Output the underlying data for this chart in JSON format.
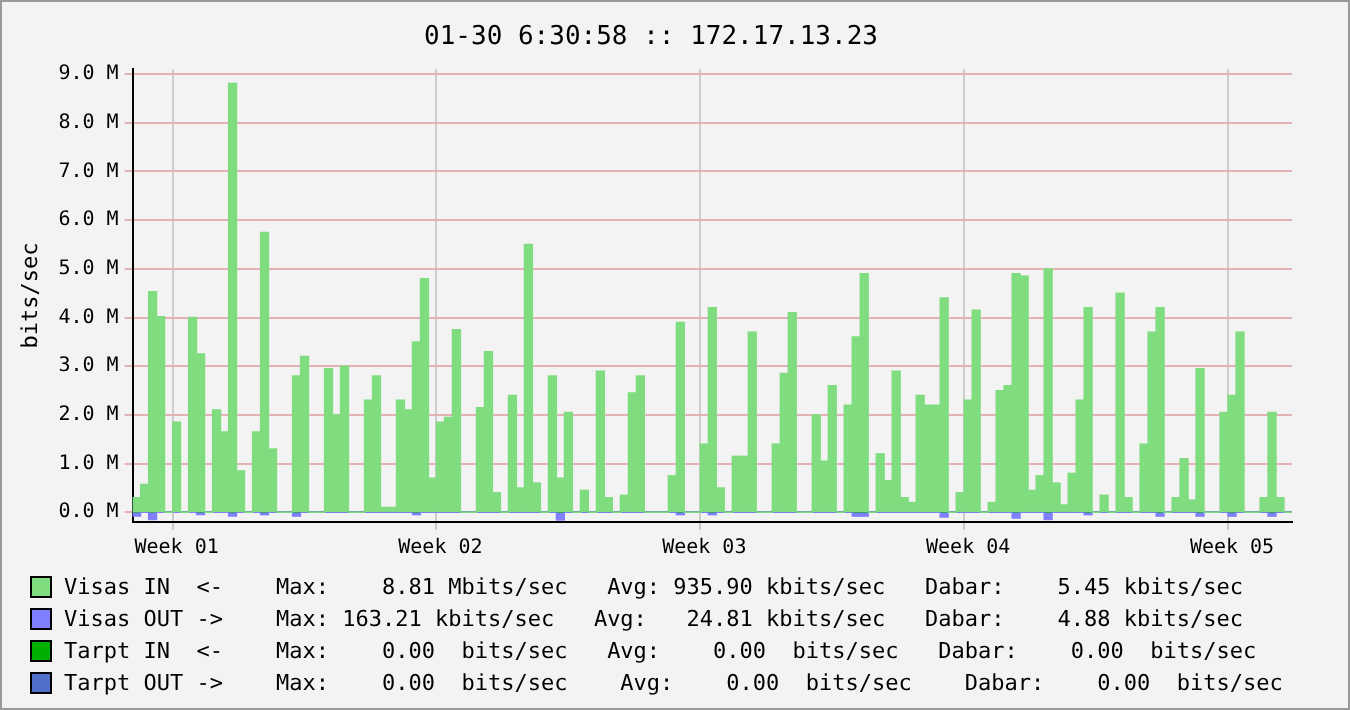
{
  "chart_data": {
    "type": "bar",
    "title": "01-30 6:30:58 :: 172.17.13.23",
    "ylabel": "bits/sec",
    "categories": [
      null,
      null,
      null,
      null,
      null,
      "Week 01",
      null,
      null,
      null,
      null,
      null,
      null,
      null,
      null,
      null,
      null,
      null,
      null,
      null,
      null,
      null,
      null,
      null,
      null,
      null,
      null,
      null,
      null,
      null,
      null,
      null,
      null,
      null,
      null,
      null,
      null,
      null,
      null,
      "Week 02",
      null,
      null,
      null,
      null,
      null,
      null,
      null,
      null,
      null,
      null,
      null,
      null,
      null,
      null,
      null,
      null,
      null,
      null,
      null,
      null,
      null,
      null,
      null,
      null,
      null,
      null,
      null,
      null,
      null,
      null,
      null,
      null,
      "Week 03",
      null,
      null,
      null,
      null,
      null,
      null,
      null,
      null,
      null,
      null,
      null,
      null,
      null,
      null,
      null,
      null,
      null,
      null,
      null,
      null,
      null,
      null,
      null,
      null,
      null,
      null,
      null,
      null,
      null,
      null,
      null,
      null,
      "Week 04",
      null,
      null,
      null,
      null,
      null,
      null,
      null,
      null,
      null,
      null,
      null,
      null,
      null,
      null,
      null,
      null,
      null,
      null,
      null,
      null,
      null,
      null,
      null,
      null,
      null,
      null,
      null,
      null,
      null,
      null,
      null,
      null,
      "Week 05",
      null,
      null,
      null,
      null,
      null,
      null,
      null
    ],
    "series": [
      {
        "name": "Visas IN  <-",
        "color": "#7fdc7f",
        "values": [
          0.3,
          0.57,
          4.53,
          4.02,
          0,
          1.85,
          0,
          4.0,
          3.25,
          0,
          2.1,
          1.65,
          8.81,
          0.85,
          0,
          1.65,
          5.75,
          1.3,
          0,
          0,
          2.8,
          3.2,
          0,
          0,
          2.95,
          2.0,
          3.0,
          0,
          0,
          2.3,
          2.8,
          0.1,
          0.1,
          2.3,
          2.1,
          3.5,
          4.8,
          0.7,
          1.85,
          1.95,
          3.75,
          0,
          0,
          2.15,
          3.3,
          0.4,
          0,
          2.4,
          0.5,
          5.5,
          0.6,
          0,
          2.8,
          0.7,
          2.05,
          0,
          0.45,
          0,
          2.9,
          0.3,
          0,
          0.35,
          2.45,
          2.8,
          0,
          0,
          0,
          0.75,
          3.9,
          0,
          0,
          1.4,
          4.2,
          0.5,
          0,
          1.15,
          1.15,
          3.7,
          0,
          0,
          1.4,
          2.85,
          4.1,
          0,
          0,
          2.0,
          1.05,
          2.6,
          0,
          2.2,
          3.6,
          4.9,
          0,
          1.2,
          0.65,
          2.9,
          0.3,
          0.2,
          2.4,
          2.2,
          2.2,
          4.4,
          0,
          0.4,
          2.3,
          4.15,
          0,
          0.2,
          2.5,
          2.6,
          4.9,
          4.85,
          0.45,
          0.75,
          5.0,
          0.6,
          0.15,
          0.8,
          2.3,
          4.2,
          0,
          0.35,
          0,
          4.5,
          0.3,
          0,
          1.4,
          3.7,
          4.2,
          0,
          0.3,
          1.1,
          0.25,
          2.95,
          0,
          0,
          2.05,
          2.4,
          3.7,
          0,
          0,
          0.3,
          2.05,
          0.3,
          0
        ]
      },
      {
        "name": "Visas OUT ->",
        "color": "#7f7fff",
        "values": [
          -0.08,
          0,
          -0.15,
          0,
          0,
          0,
          0,
          0,
          -0.05,
          0,
          0,
          0,
          -0.08,
          0,
          0,
          0,
          -0.05,
          0,
          0,
          0,
          -0.08,
          0,
          0,
          0,
          0,
          0,
          0,
          0,
          0,
          0,
          0,
          0,
          0,
          0,
          0,
          -0.05,
          0,
          0,
          0,
          0,
          0,
          0,
          0,
          0,
          0,
          0,
          0,
          0,
          0,
          0,
          0,
          0,
          0,
          -0.16,
          0,
          0,
          0,
          0,
          0,
          0,
          0,
          0,
          0,
          0,
          0,
          0,
          0,
          0,
          -0.05,
          0,
          0,
          0,
          -0.05,
          0,
          0,
          0,
          0,
          0,
          0,
          0,
          0,
          0,
          0,
          0,
          0,
          0,
          0,
          0,
          0,
          0,
          -0.08,
          -0.08,
          0,
          0,
          0,
          0,
          0,
          0,
          0,
          0,
          0,
          -0.1,
          0,
          0,
          0,
          0,
          0,
          0,
          0,
          0,
          -0.12,
          0,
          0,
          0,
          -0.15,
          0,
          0,
          0,
          0,
          -0.05,
          0,
          0,
          0,
          0,
          0,
          0,
          0,
          0,
          -0.08,
          0,
          0,
          0,
          0,
          -0.08,
          0,
          0,
          0,
          -0.08,
          0,
          0,
          0,
          0,
          -0.08,
          0,
          0
        ]
      },
      {
        "name": "Tarpt IN  <-",
        "color": "#00b000",
        "values": [
          0,
          0,
          0,
          0,
          0,
          0,
          0,
          0,
          0,
          0,
          0,
          0,
          0,
          0,
          0,
          0,
          0,
          0,
          0,
          0,
          0,
          0,
          0,
          0,
          0,
          0,
          0,
          0,
          0,
          0,
          0,
          0,
          0,
          0,
          0,
          0,
          0,
          0,
          0,
          0,
          0,
          0,
          0,
          0,
          0,
          0,
          0,
          0,
          0,
          0,
          0,
          0,
          0,
          0,
          0,
          0,
          0,
          0,
          0,
          0,
          0,
          0,
          0,
          0,
          0,
          0,
          0,
          0,
          0,
          0,
          0,
          0,
          0,
          0,
          0,
          0,
          0,
          0,
          0,
          0,
          0,
          0,
          0,
          0,
          0,
          0,
          0,
          0,
          0,
          0,
          0,
          0,
          0,
          0,
          0,
          0,
          0,
          0,
          0,
          0,
          0,
          0,
          0,
          0,
          0,
          0,
          0,
          0,
          0,
          0,
          0,
          0,
          0,
          0,
          0,
          0,
          0,
          0,
          0,
          0,
          0,
          0,
          0,
          0,
          0,
          0,
          0,
          0,
          0,
          0,
          0,
          0,
          0,
          0,
          0,
          0,
          0,
          0,
          0,
          0,
          0,
          0,
          0,
          0,
          0
        ]
      },
      {
        "name": "Tarpt OUT ->",
        "color": "#4f6fc8",
        "values": [
          0,
          0,
          0,
          0,
          0,
          0,
          0,
          0,
          0,
          0,
          0,
          0,
          0,
          0,
          0,
          0,
          0,
          0,
          0,
          0,
          0,
          0,
          0,
          0,
          0,
          0,
          0,
          0,
          0,
          0,
          0,
          0,
          0,
          0,
          0,
          0,
          0,
          0,
          0,
          0,
          0,
          0,
          0,
          0,
          0,
          0,
          0,
          0,
          0,
          0,
          0,
          0,
          0,
          0,
          0,
          0,
          0,
          0,
          0,
          0,
          0,
          0,
          0,
          0,
          0,
          0,
          0,
          0,
          0,
          0,
          0,
          0,
          0,
          0,
          0,
          0,
          0,
          0,
          0,
          0,
          0,
          0,
          0,
          0,
          0,
          0,
          0,
          0,
          0,
          0,
          0,
          0,
          0,
          0,
          0,
          0,
          0,
          0,
          0,
          0,
          0,
          0,
          0,
          0,
          0,
          0,
          0,
          0,
          0,
          0,
          0,
          0,
          0,
          0,
          0,
          0,
          0,
          0,
          0,
          0,
          0,
          0,
          0,
          0,
          0,
          0,
          0,
          0,
          0,
          0,
          0,
          0,
          0,
          0,
          0,
          0,
          0,
          0,
          0,
          0,
          0,
          0,
          0,
          0,
          0
        ]
      }
    ],
    "ylim": [
      -0.2,
      9.1
    ],
    "yticks": [
      {
        "value": 0,
        "label": "0.0 M"
      },
      {
        "value": 1,
        "label": "1.0 M"
      },
      {
        "value": 2,
        "label": "2.0 M"
      },
      {
        "value": 3,
        "label": "3.0 M"
      },
      {
        "value": 4,
        "label": "4.0 M"
      },
      {
        "value": 5,
        "label": "5.0 M"
      },
      {
        "value": 6,
        "label": "6.0 M"
      },
      {
        "value": 7,
        "label": "7.0 M"
      },
      {
        "value": 8,
        "label": "8.0 M"
      },
      {
        "value": 9,
        "label": "9.0 M"
      }
    ],
    "grid": true,
    "legend": "bottom",
    "annotations": [
      "Max:    8.81 Mbits/sec   Avg: 935.90 kbits/sec   Dabar:    5.45 kbits/sec",
      "Max: 163.21 kbits/sec   Avg:   24.81 kbits/sec   Dabar:    4.88 kbits/sec",
      "Max:    0.00  bits/sec   Avg:    0.00  bits/sec   Dabar:    0.00  bits/sec",
      "Max:    0.00  bits/sec    Avg:    0.00  bits/sec    Dabar:    0.00  bits/sec"
    ]
  }
}
